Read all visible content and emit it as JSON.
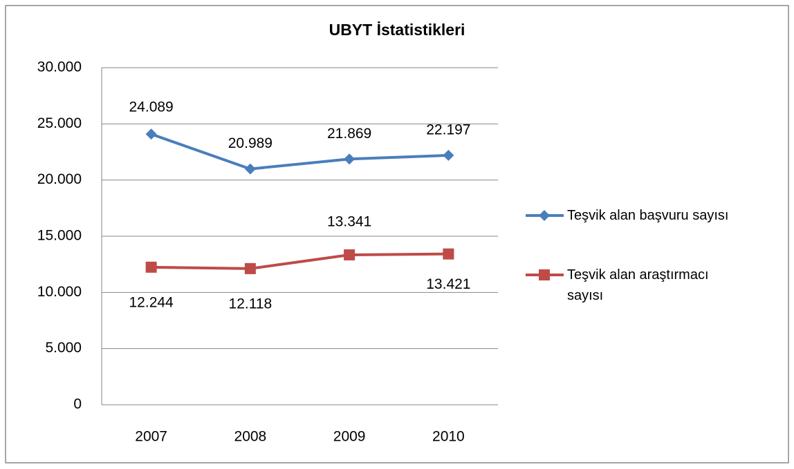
{
  "chart_data": {
    "type": "line",
    "title": "UBYT İstatistikleri",
    "categories": [
      "2007",
      "2008",
      "2009",
      "2010"
    ],
    "series": [
      {
        "name": "Teşvik alan başvuru sayısı",
        "color": "#4a7ebb",
        "marker": "diamond",
        "values": [
          24089,
          20989,
          21869,
          22197
        ],
        "value_labels": [
          "24.089",
          "20.989",
          "21.869",
          "22.197"
        ]
      },
      {
        "name": "Teşvik alan araştırmacı sayısı",
        "color": "#be4b48",
        "marker": "square",
        "values": [
          12244,
          12118,
          13341,
          13421
        ],
        "value_labels": [
          "12.244",
          "12.118",
          "13.341",
          "13.421"
        ]
      }
    ],
    "ylim": [
      0,
      30000
    ],
    "yticks": [
      0,
      {
        "value": 5000,
        "label": "5.000"
      },
      {
        "value": 10000,
        "label": "10.000"
      },
      {
        "value": 15000,
        "label": "15.000"
      },
      {
        "value": 20000,
        "label": "20.000"
      },
      {
        "value": 25000,
        "label": "25.000"
      },
      {
        "value": 30000,
        "label": "30.000"
      }
    ],
    "grid": true,
    "legend": "right"
  }
}
